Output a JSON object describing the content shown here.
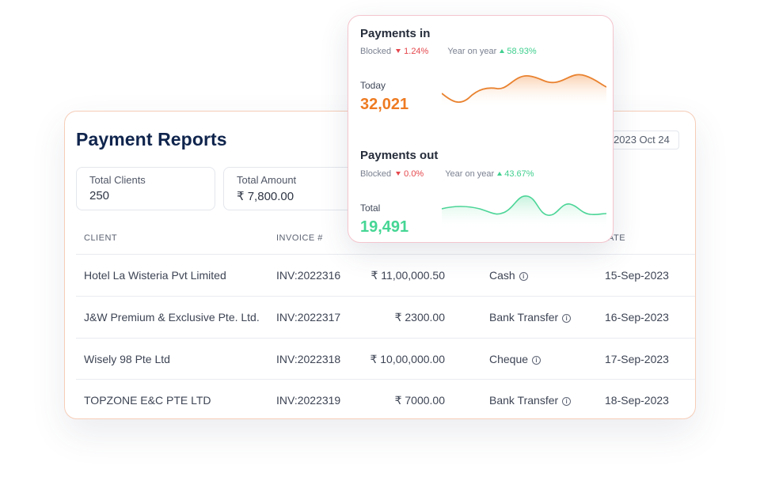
{
  "report": {
    "title": "Payment Reports",
    "date_chip": "2023 Oct 24",
    "stats": [
      {
        "label": "Total Clients",
        "value": "250"
      },
      {
        "label": "Total Amount",
        "value": "₹ 7,800.00"
      }
    ],
    "columns": [
      "CLIENT",
      "INVOICE #",
      "ATE"
    ],
    "rows": [
      {
        "client": "Hotel La Wisteria Pvt Limited",
        "invoice": "INV:2022316",
        "amount": "₹ 11,00,000.50",
        "mode": "Cash",
        "date": "15-Sep-2023"
      },
      {
        "client": "J&W Premium & Exclusive Pte. Ltd.",
        "invoice": "INV:2022317",
        "amount": "₹ 2300.00",
        "mode": "Bank Transfer",
        "date": "16-Sep-2023"
      },
      {
        "client": "Wisely 98 Pte Ltd",
        "invoice": "INV:2022318",
        "amount": "₹ 10,00,000.00",
        "mode": "Cheque",
        "date": "17-Sep-2023"
      },
      {
        "client": "TOPZONE E&C PTE LTD",
        "invoice": "INV:2022319",
        "amount": "₹ 7000.00",
        "mode": "Bank Transfer",
        "date": "18-Sep-2023"
      }
    ],
    "info_glyph": "i"
  },
  "payments_in": {
    "title": "Payments in",
    "blocked_label": "Blocked",
    "blocked_value": "1.24%",
    "yoy_label": "Year on year",
    "yoy_value": "58.93%",
    "sub_label": "Today",
    "amount": "32,021",
    "color": "#ee7b22"
  },
  "payments_out": {
    "title": "Payments out",
    "blocked_label": "Blocked",
    "blocked_value": "0.0%",
    "yoy_label": "Year on year",
    "yoy_value": "43.67%",
    "sub_label": "Total",
    "amount": "19,491",
    "color": "#45d694"
  }
}
